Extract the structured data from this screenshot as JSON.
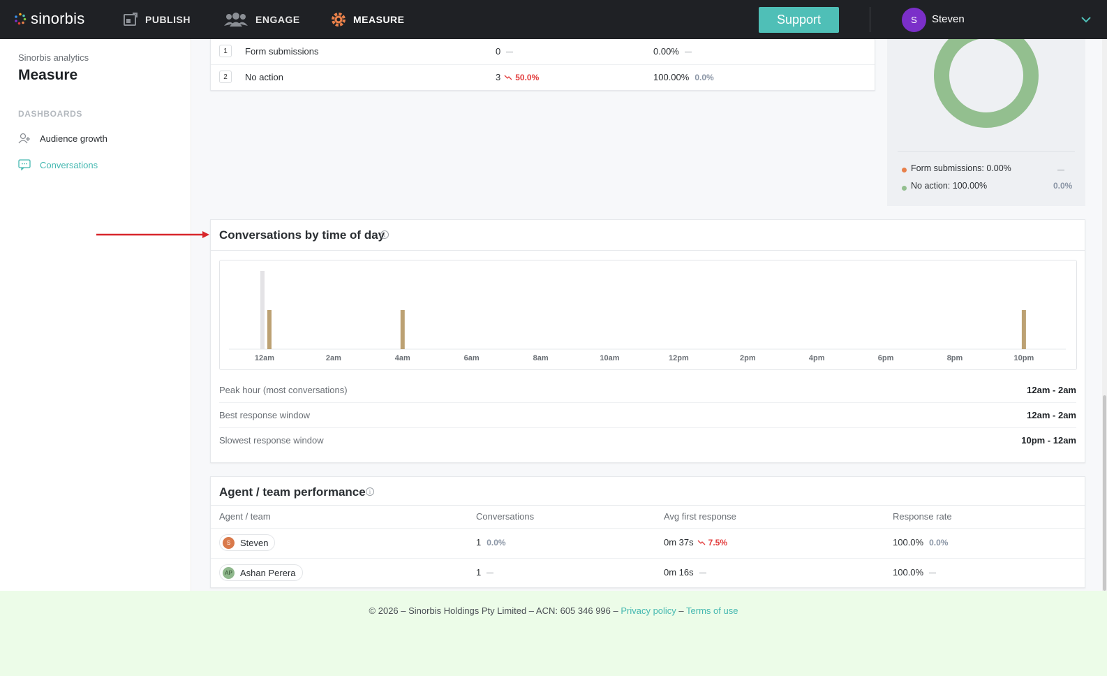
{
  "topbar": {
    "logo": "sinorbis",
    "nav": [
      {
        "label": "PUBLISH",
        "icon": "publish-icon"
      },
      {
        "label": "ENGAGE",
        "icon": "engage-icon"
      },
      {
        "label": "MEASURE",
        "icon": "measure-icon"
      }
    ],
    "support_label": "Support",
    "user": {
      "initial": "S",
      "name": "Steven"
    }
  },
  "sidebar": {
    "subtitle": "Sinorbis analytics",
    "title": "Measure",
    "section": "DASHBOARDS",
    "items": [
      {
        "label": "Audience growth",
        "icon": "audience-icon"
      },
      {
        "label": "Conversations",
        "icon": "chat-icon"
      }
    ]
  },
  "actions_table": {
    "rows": [
      {
        "num": "1",
        "label": "Form submissions",
        "count": "0",
        "count_change": "",
        "pct": "0.00%",
        "pct_change": ""
      },
      {
        "num": "2",
        "label": "No action",
        "count": "3",
        "count_change": "50.0%",
        "pct": "100.00%",
        "pct_change": "0.0%"
      }
    ]
  },
  "donut": {
    "legend": [
      {
        "label": "Form submissions: 0.00%",
        "change": "",
        "color": "#e8804a"
      },
      {
        "label": "No action: 100.00%",
        "change": "0.0%",
        "color": "#93bf8f"
      }
    ]
  },
  "time_of_day": {
    "title": "Conversations by time of day",
    "info": "i",
    "stats": [
      {
        "label": "Peak hour (most conversations)",
        "value": "12am - 2am"
      },
      {
        "label": "Best response window",
        "value": "12am - 2am"
      },
      {
        "label": "Slowest response window",
        "value": "10pm - 12am"
      }
    ]
  },
  "chart_data": {
    "type": "bar",
    "categories": [
      "12am",
      "2am",
      "4am",
      "6am",
      "8am",
      "10am",
      "12pm",
      "2pm",
      "4pm",
      "6pm",
      "8pm",
      "10pm"
    ],
    "series": [
      {
        "values": [
          2,
          0,
          0,
          0,
          0,
          0,
          0,
          0,
          0,
          0,
          0,
          0
        ],
        "color": "#e4e3e6"
      },
      {
        "values": [
          1,
          0,
          1,
          0,
          0,
          0,
          0,
          0,
          0,
          0,
          0,
          1
        ],
        "color": "#bca173"
      }
    ],
    "ylim": [
      0,
      2
    ],
    "grid": false
  },
  "agent_performance": {
    "title": "Agent / team performance",
    "info": "i",
    "headers": [
      "Agent / team",
      "Conversations",
      "Avg first response",
      "Response rate"
    ],
    "rows": [
      {
        "initials": "S",
        "avatar_color": "#d9794a",
        "name": "Steven",
        "conversations": "1",
        "conv_change": "0.0%",
        "avg": "0m 37s",
        "avg_change": "7.5%",
        "rate": "100.0%",
        "rate_change": "0.0%"
      },
      {
        "initials": "AP",
        "avatar_color": "#8fb88c",
        "name": "Ashan Perera",
        "conversations": "1",
        "conv_change": "",
        "avg": "0m 16s",
        "avg_change": "",
        "rate": "100.0%",
        "rate_change": ""
      }
    ]
  },
  "footer": {
    "text": "© 2026 – Sinorbis Holdings Pty Limited – ACN: 605 346 996 – ",
    "privacy": "Privacy policy",
    "sep": " – ",
    "terms": "Terms of use"
  }
}
